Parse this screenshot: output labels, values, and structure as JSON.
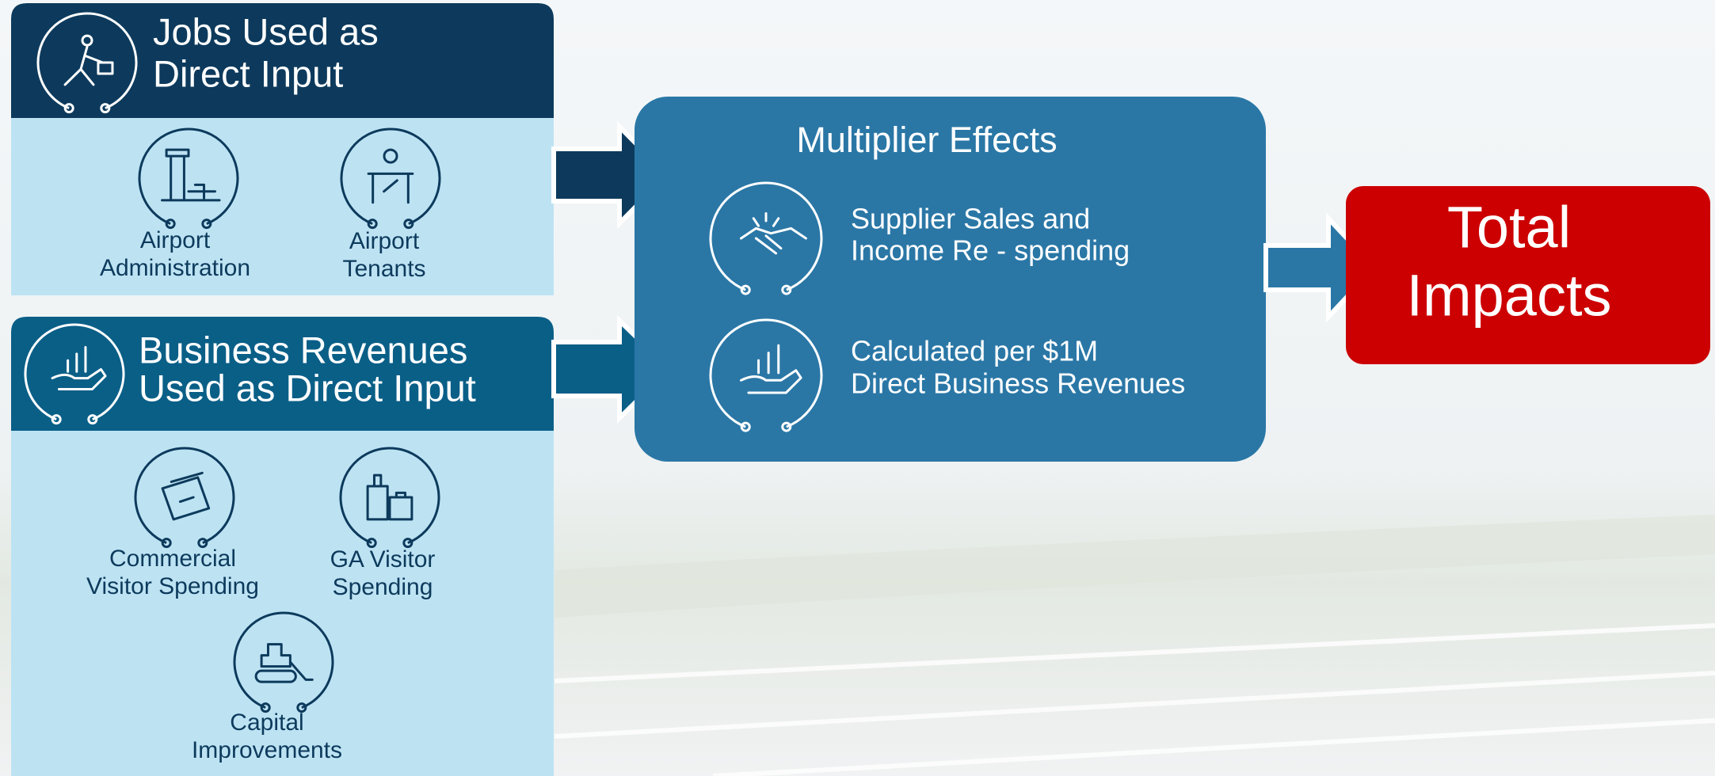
{
  "inputs": [
    {
      "title_lines": [
        "Jobs Used as",
        "Direct Input"
      ],
      "items": [
        {
          "label_lines": [
            "Airport",
            "Administration"
          ]
        },
        {
          "label_lines": [
            "Airport",
            "Tenants"
          ]
        }
      ]
    },
    {
      "title_lines": [
        "Business Revenues",
        "Used as Direct Input"
      ],
      "items": [
        {
          "label_lines": [
            "Commercial",
            "Visitor Spending"
          ]
        },
        {
          "label_lines": [
            "GA Visitor",
            "Spending"
          ]
        },
        {
          "label_lines": [
            "Capital",
            "Improvements"
          ]
        }
      ]
    }
  ],
  "multiplier": {
    "title": "Multiplier Effects",
    "items": [
      {
        "lines": [
          "Supplier Sales and",
          "Income Re  - spending"
        ]
      },
      {
        "lines": [
          "Calculated per $1M",
          "Direct Business Revenues"
        ]
      }
    ]
  },
  "total": {
    "lines": [
      "Total",
      "Impacts"
    ]
  }
}
